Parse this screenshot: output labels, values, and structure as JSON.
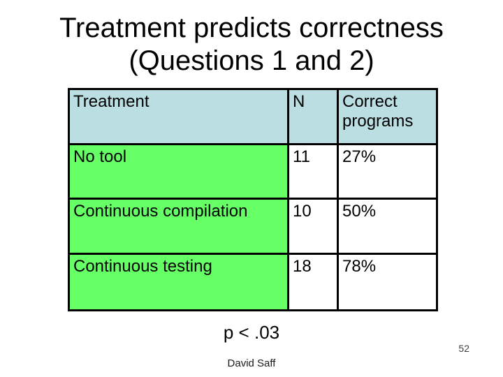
{
  "slide": {
    "title_line1": "Treatment predicts correctness",
    "title_line2": "(Questions 1 and 2)",
    "p_value": "p < .03",
    "footer_author": "David Saff",
    "page_number": "52"
  },
  "table": {
    "header": {
      "treatment": "Treatment",
      "n": "N",
      "correct": "Correct programs"
    },
    "rows": [
      {
        "treatment": "No tool",
        "n": "11",
        "correct": "27%"
      },
      {
        "treatment": "Continuous compilation",
        "n": "10",
        "correct": "50%"
      },
      {
        "treatment": "Continuous testing",
        "n": "18",
        "correct": "78%"
      }
    ]
  },
  "chart_data": {
    "type": "table",
    "title": "Treatment predicts correctness (Questions 1 and 2)",
    "columns": [
      "Treatment",
      "N",
      "Correct programs"
    ],
    "rows": [
      [
        "No tool",
        11,
        "27%"
      ],
      [
        "Continuous compilation",
        10,
        "50%"
      ],
      [
        "Continuous testing",
        18,
        "78%"
      ]
    ],
    "annotations": [
      "p < .03"
    ]
  },
  "colors": {
    "header_bg": "#bbdee3",
    "treatment_cell_bg": "#66ff66",
    "data_cell_bg": "#ffffff",
    "border": "#000000",
    "background": "#ffffff"
  }
}
